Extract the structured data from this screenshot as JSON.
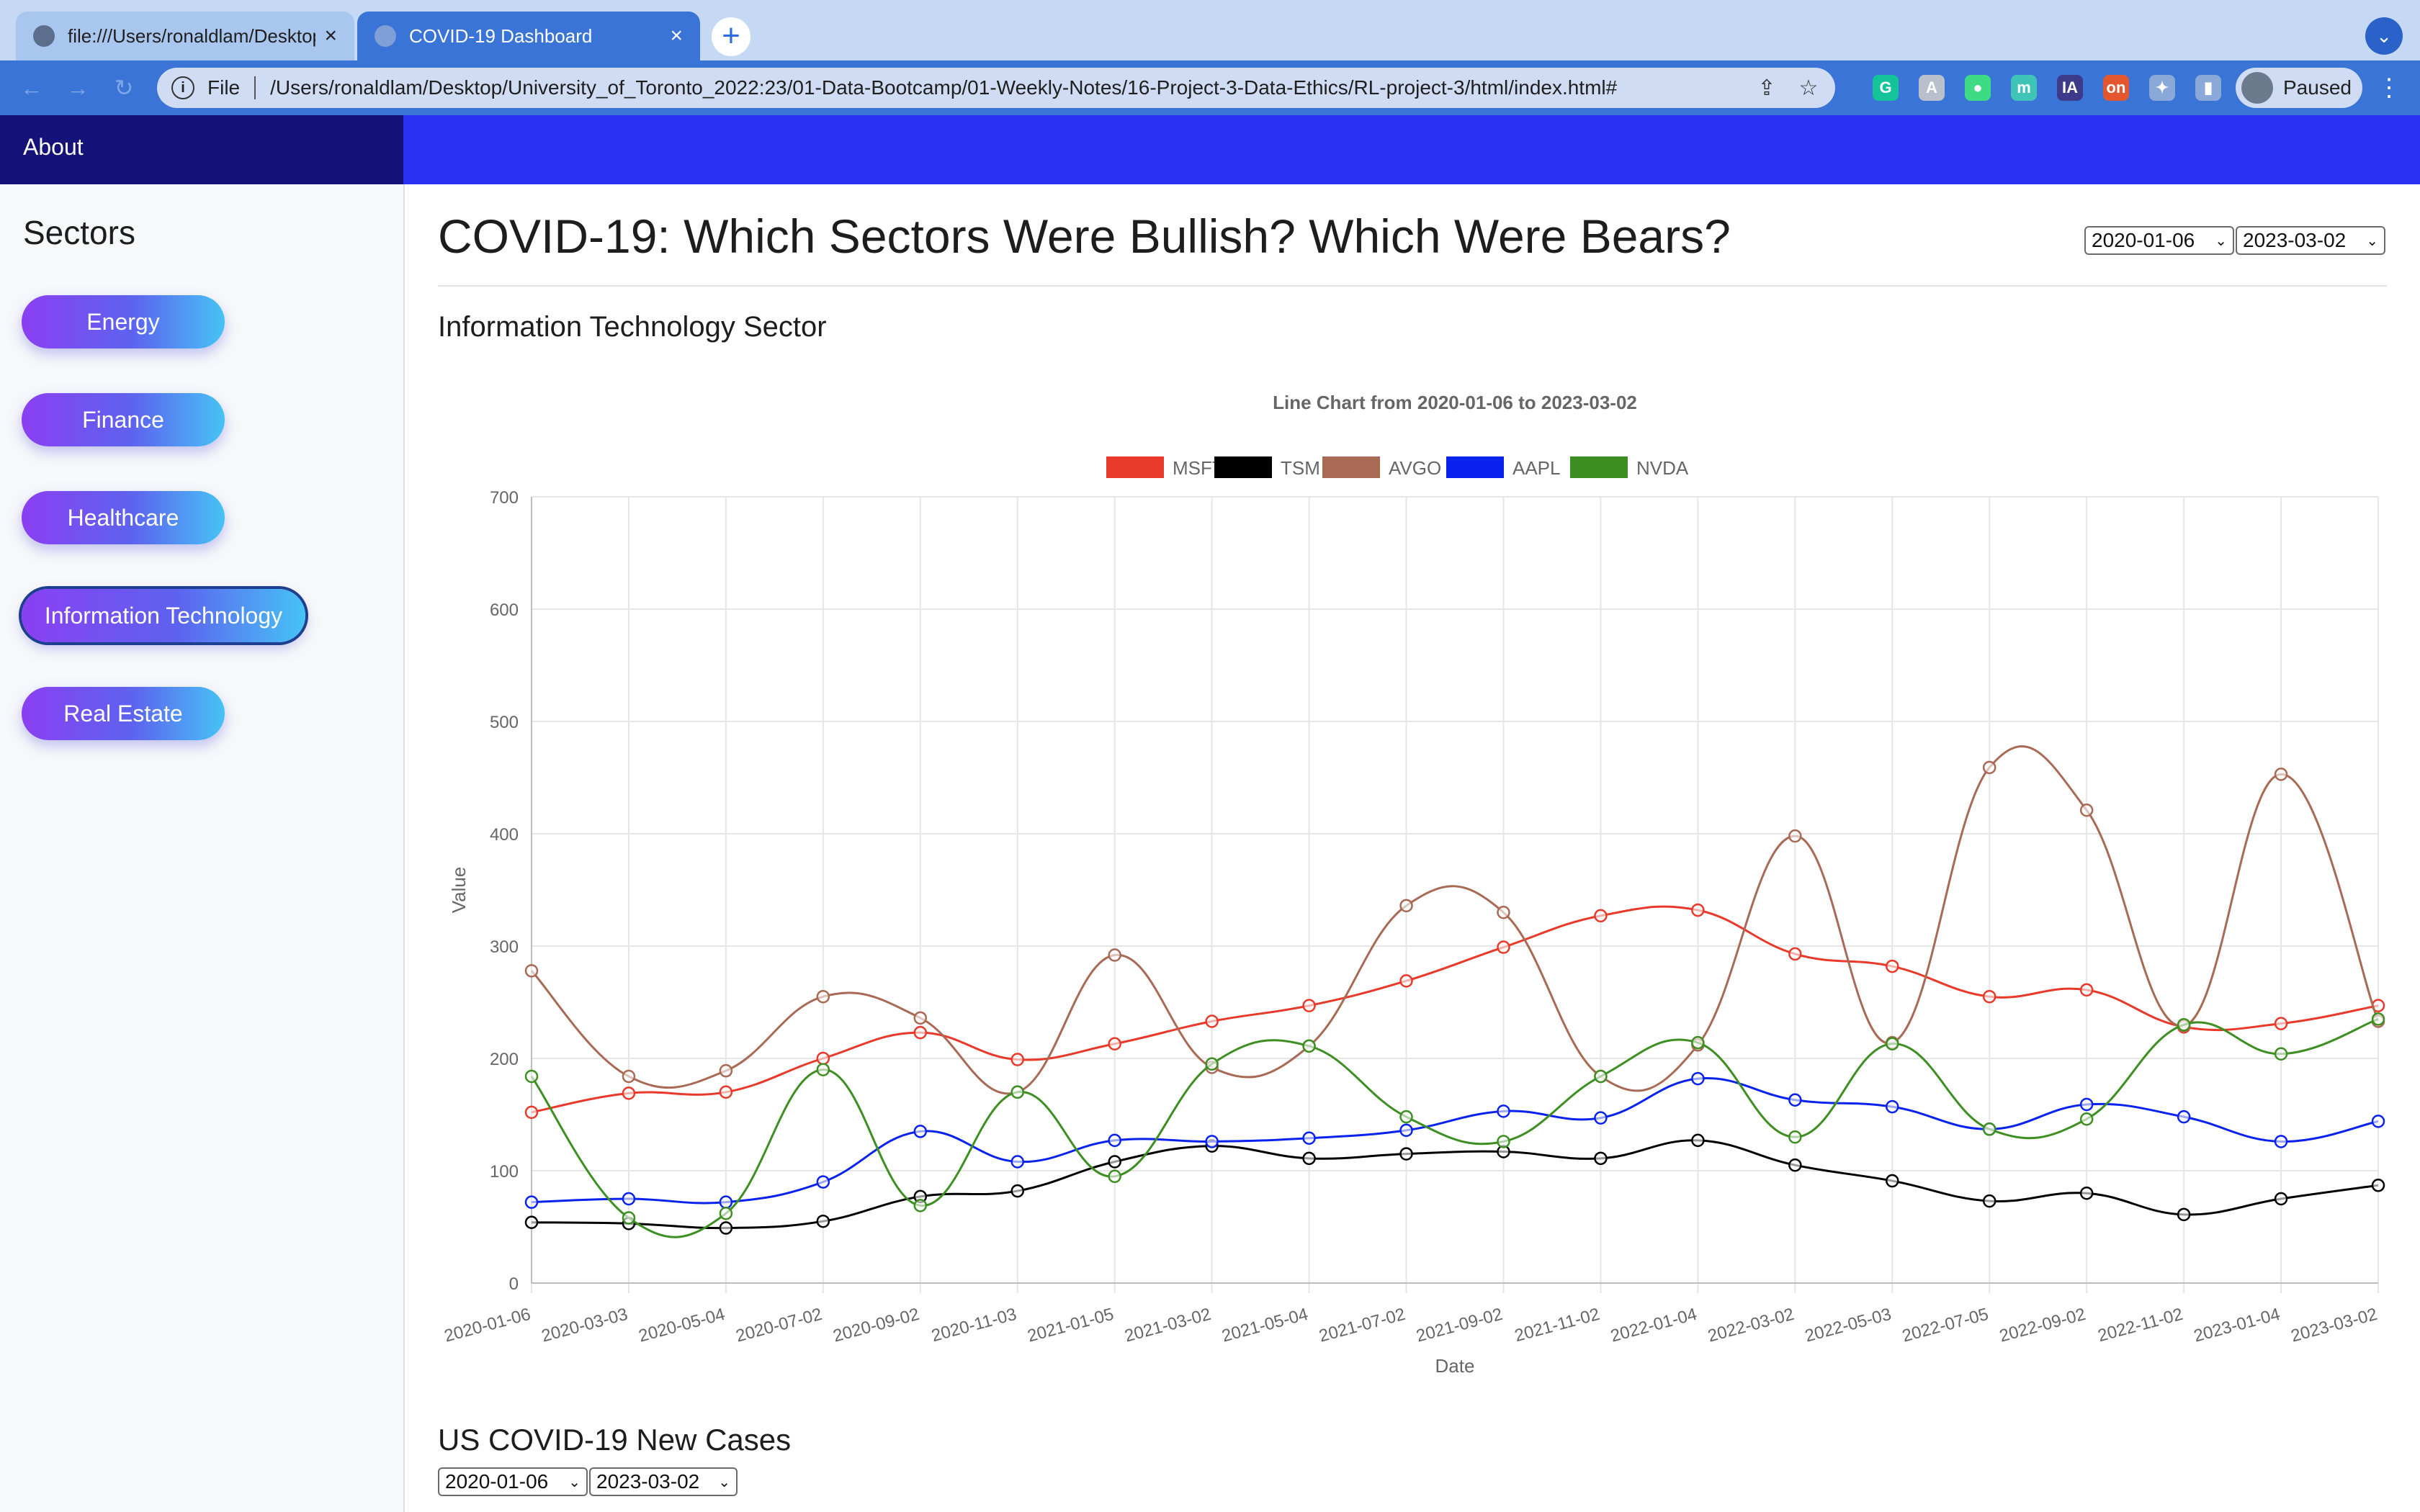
{
  "browser": {
    "tabs": [
      {
        "title": "file:///Users/ronaldlam/Desktop",
        "close": "×"
      },
      {
        "title": "COVID-19 Dashboard",
        "close": "×"
      }
    ],
    "new_tab": "+",
    "tab_menu": "⌄",
    "nav": {
      "back": "←",
      "forward": "→",
      "reload": "↻"
    },
    "omnibox": {
      "scheme_label": "File",
      "url": "/Users/ronaldlam/Desktop/University_of_Toronto_2022:23/01-Data-Bootcamp/01-Weekly-Notes/16-Project-3-Data-Ethics/RL-project-3/html/index.html#",
      "share_icon": "⇪",
      "star_icon": "☆"
    },
    "extensions": [
      {
        "name": "grammarly-icon",
        "glyph": "G",
        "color": "#15c39a"
      },
      {
        "name": "translate-icon",
        "glyph": "A",
        "color": "#b9c0cc"
      },
      {
        "name": "android-icon",
        "glyph": "●",
        "color": "#3ddc84"
      },
      {
        "name": "m-extension-icon",
        "glyph": "m",
        "color": "#40c4b7"
      },
      {
        "name": "ia-extension-icon",
        "glyph": "IA",
        "color": "#3d3a8c"
      },
      {
        "name": "on-extension-icon",
        "glyph": "on",
        "color": "#e4572e"
      },
      {
        "name": "puzzle-icon",
        "glyph": "✦",
        "color": "#8aa8d8"
      },
      {
        "name": "sidepanel-icon",
        "glyph": "▮",
        "color": "#8aa8d8"
      }
    ],
    "profile_label": "Paused",
    "menu_icon": "⋮"
  },
  "navbar": {
    "about_label": "About"
  },
  "sidebar": {
    "title": "Sectors",
    "buttons": [
      {
        "label": "Energy"
      },
      {
        "label": "Finance"
      },
      {
        "label": "Healthcare"
      },
      {
        "label": "Information Technology"
      },
      {
        "label": "Real Estate"
      }
    ]
  },
  "main": {
    "title": "COVID-19: Which Sectors Were Bullish? Which Were Bears?",
    "start_date": "2020-01-06",
    "end_date": "2023-03-02",
    "chevron": "⌄",
    "section_title": "Information Technology Sector",
    "covid_title": "US COVID-19 New Cases",
    "covid_start_date": "2020-01-06",
    "covid_end_date": "2023-03-02"
  },
  "chart_data": {
    "type": "line",
    "title": "Line Chart from 2020-01-06 to 2023-03-02",
    "xlabel": "Date",
    "ylabel": "Value",
    "ylim": [
      0,
      700
    ],
    "yticks": [
      0,
      100,
      200,
      300,
      400,
      500,
      600,
      700
    ],
    "grid": true,
    "legend_position": "top",
    "categories": [
      "2020-01-06",
      "2020-03-03",
      "2020-05-04",
      "2020-07-02",
      "2020-09-02",
      "2020-11-03",
      "2021-01-05",
      "2021-03-02",
      "2021-05-04",
      "2021-07-02",
      "2021-09-02",
      "2021-11-02",
      "2022-01-04",
      "2022-03-02",
      "2022-05-03",
      "2022-07-05",
      "2022-09-02",
      "2022-11-02",
      "2023-01-04",
      "2023-03-02"
    ],
    "series": [
      {
        "name": "MSFT",
        "color": "#e8392a",
        "values": [
          152,
          169,
          170,
          200,
          223,
          199,
          213,
          233,
          247,
          269,
          299,
          327,
          332,
          293,
          282,
          255,
          261,
          228,
          231,
          247
        ]
      },
      {
        "name": "TSM",
        "color": "#000000",
        "values": [
          54,
          53,
          49,
          55,
          77,
          82,
          108,
          122,
          111,
          115,
          117,
          111,
          127,
          105,
          91,
          73,
          80,
          61,
          75,
          87
        ]
      },
      {
        "name": "AVGO",
        "color": "#a86a55",
        "values": [
          278,
          184,
          189,
          255,
          236,
          170,
          292,
          192,
          211,
          336,
          330,
          184,
          212,
          398,
          214,
          459,
          421,
          229,
          453,
          233
        ]
      },
      {
        "name": "AAPL",
        "color": "#0a22ee",
        "values": [
          72,
          75,
          72,
          90,
          135,
          108,
          127,
          126,
          129,
          136,
          153,
          147,
          182,
          163,
          157,
          137,
          159,
          148,
          126,
          144
        ]
      },
      {
        "name": "NVDA",
        "color": "#3d8f22",
        "values": [
          184,
          58,
          62,
          190,
          69,
          170,
          95,
          195,
          211,
          148,
          126,
          184,
          214,
          130,
          213,
          137,
          146,
          230,
          204,
          235
        ]
      }
    ]
  }
}
